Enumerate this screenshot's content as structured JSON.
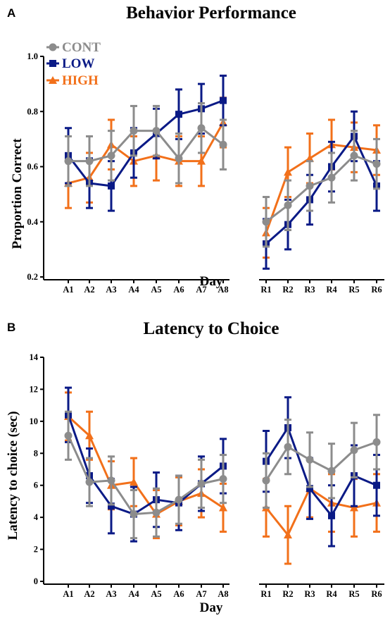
{
  "panels": {
    "a": {
      "label": "A"
    },
    "b": {
      "label": "B"
    }
  },
  "colors": {
    "CONT": "#8c8c8c",
    "LOW": "#0a1a86",
    "HIGH": "#f2701a"
  },
  "chart_data": [
    {
      "type": "line",
      "title": "Behavior Performance",
      "xlabel": "Day",
      "ylabel": "Proportion Correct",
      "ylim": [
        0.2,
        1.0
      ],
      "yticks": [
        "0.2",
        "0.4",
        "0.6",
        "0.8",
        "1.0"
      ],
      "categories": [
        "A1",
        "A2",
        "A3",
        "A4",
        "A5",
        "A6",
        "A7",
        "A8",
        "R1",
        "R2",
        "R3",
        "R4",
        "R5",
        "R6"
      ],
      "legend": {
        "placement": "top-left",
        "entries": [
          "CONT",
          "LOW",
          "HIGH"
        ]
      },
      "grid": false,
      "series": [
        {
          "name": "CONT",
          "values": [
            0.62,
            0.62,
            0.64,
            0.73,
            0.73,
            0.63,
            0.74,
            0.68,
            0.4,
            0.46,
            0.53,
            0.56,
            0.64,
            0.61
          ],
          "errors": [
            0.09,
            0.09,
            0.09,
            0.09,
            0.09,
            0.09,
            0.09,
            0.09,
            0.09,
            0.09,
            0.09,
            0.09,
            0.09,
            0.09
          ]
        },
        {
          "name": "LOW",
          "values": [
            0.64,
            0.54,
            0.53,
            0.65,
            0.72,
            0.79,
            0.81,
            0.84,
            0.32,
            0.39,
            0.48,
            0.6,
            0.71,
            0.53
          ],
          "errors": [
            0.1,
            0.09,
            0.09,
            0.09,
            0.09,
            0.09,
            0.09,
            0.09,
            0.09,
            0.09,
            0.09,
            0.09,
            0.09,
            0.09
          ]
        },
        {
          "name": "HIGH",
          "values": [
            0.54,
            0.56,
            0.68,
            0.62,
            0.64,
            0.62,
            0.62,
            0.76,
            0.36,
            0.58,
            0.63,
            0.68,
            0.67,
            0.66
          ],
          "errors": [
            0.09,
            0.09,
            0.09,
            0.09,
            0.09,
            0.09,
            0.09,
            0.09,
            0.09,
            0.09,
            0.09,
            0.09,
            0.09,
            0.09
          ]
        }
      ]
    },
    {
      "type": "line",
      "title": "Latency to Choice",
      "xlabel": "Day",
      "ylabel": "Latency to choice (sec)",
      "ylim": [
        0,
        14
      ],
      "yticks": [
        "0",
        "2",
        "4",
        "6",
        "8",
        "10",
        "12",
        "14"
      ],
      "categories": [
        "A1",
        "A2",
        "A3",
        "A4",
        "A5",
        "A6",
        "A7",
        "A8",
        "R1",
        "R2",
        "R3",
        "R4",
        "R5",
        "R6"
      ],
      "grid": false,
      "series": [
        {
          "name": "CONT",
          "values": [
            9.1,
            6.2,
            6.3,
            4.2,
            4.3,
            5.1,
            6.1,
            6.4,
            6.3,
            8.4,
            7.6,
            6.9,
            8.2,
            8.7
          ],
          "errors": [
            1.5,
            1.5,
            1.5,
            1.5,
            1.5,
            1.5,
            1.5,
            1.5,
            1.7,
            1.7,
            1.7,
            1.7,
            1.7,
            1.7
          ]
        },
        {
          "name": "LOW",
          "values": [
            10.4,
            6.6,
            4.7,
            4.2,
            5.1,
            4.9,
            6.1,
            7.2,
            7.5,
            9.6,
            5.8,
            4.1,
            6.6,
            6.0
          ],
          "errors": [
            1.7,
            1.7,
            1.7,
            1.7,
            1.7,
            1.7,
            1.7,
            1.7,
            1.9,
            1.9,
            1.9,
            1.9,
            1.9,
            1.9
          ]
        },
        {
          "name": "HIGH",
          "values": [
            10.3,
            9.1,
            6.0,
            6.2,
            4.2,
            5.0,
            5.5,
            4.6,
            4.6,
            2.9,
            5.8,
            4.9,
            4.6,
            4.9
          ],
          "errors": [
            1.5,
            1.5,
            1.5,
            1.5,
            1.5,
            1.5,
            1.5,
            1.5,
            1.8,
            1.8,
            1.8,
            1.8,
            1.8,
            1.8
          ]
        }
      ]
    }
  ]
}
